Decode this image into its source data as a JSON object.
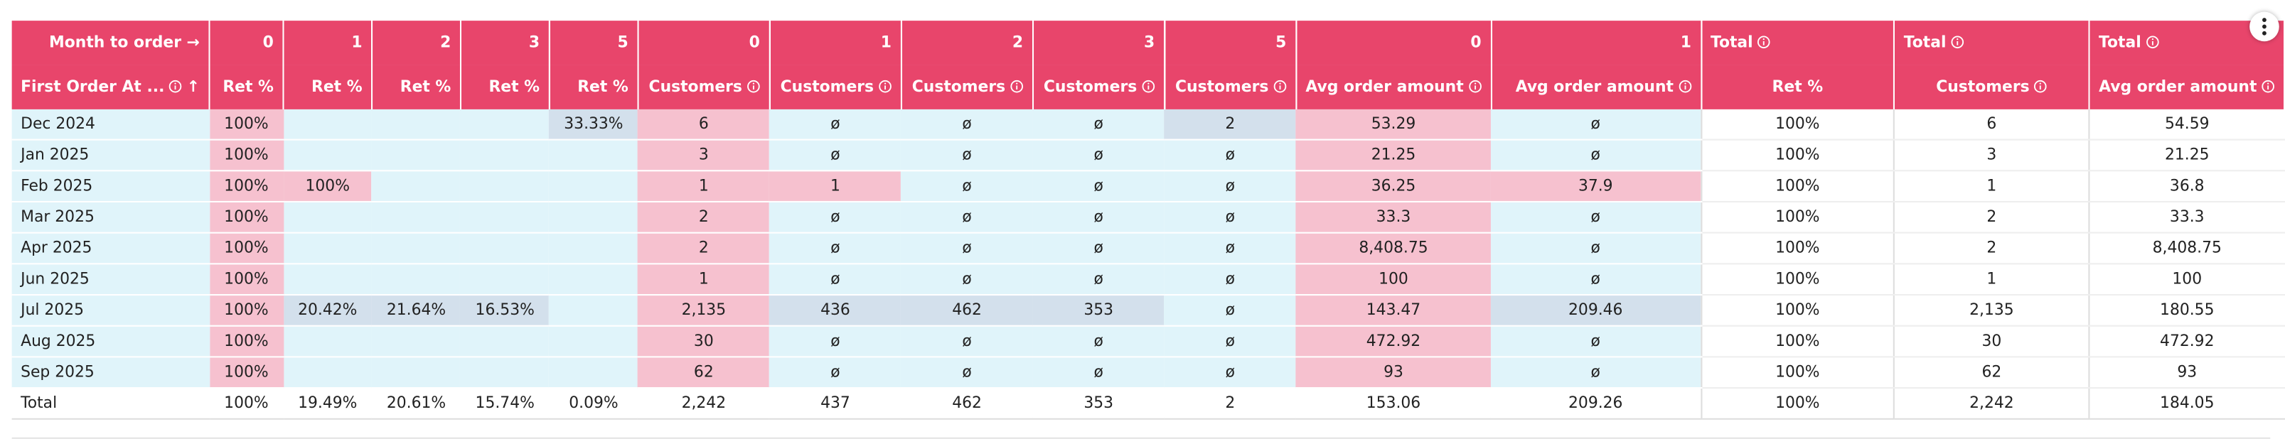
{
  "table": {
    "header_top": {
      "label": "Month to order →",
      "months": [
        0,
        1,
        2,
        3,
        5,
        0,
        1,
        2,
        3,
        5,
        0,
        1
      ],
      "totals": [
        "Total",
        "Total",
        "Total"
      ]
    },
    "header_bottom": {
      "label": "First Order At ...",
      "sort": "↑",
      "columns": [
        "Ret %",
        "Ret %",
        "Ret %",
        "Ret %",
        "Ret %",
        "Customers",
        "Customers",
        "Customers",
        "Customers",
        "Customers",
        "Avg order amount",
        "Avg order amount"
      ],
      "totals": [
        "Ret %",
        "Customers",
        "Avg order amount"
      ]
    },
    "rows": [
      {
        "label": "Dec 2024",
        "cells": [
          "100%",
          null,
          null,
          null,
          "33.33%",
          "6",
          "ø",
          "ø",
          "ø",
          "2",
          "53.29",
          "ø"
        ],
        "totals": [
          "100%",
          "6",
          "54.59"
        ]
      },
      {
        "label": "Jan 2025",
        "cells": [
          "100%",
          null,
          null,
          null,
          null,
          "3",
          "ø",
          "ø",
          "ø",
          "ø",
          "21.25",
          "ø"
        ],
        "totals": [
          "100%",
          "3",
          "21.25"
        ]
      },
      {
        "label": "Feb 2025",
        "cells": [
          "100%",
          "100%",
          null,
          null,
          null,
          "1",
          "1",
          "ø",
          "ø",
          "ø",
          "36.25",
          "37.9"
        ],
        "totals": [
          "100%",
          "1",
          "36.8"
        ]
      },
      {
        "label": "Mar 2025",
        "cells": [
          "100%",
          null,
          null,
          null,
          null,
          "2",
          "ø",
          "ø",
          "ø",
          "ø",
          "33.3",
          "ø"
        ],
        "totals": [
          "100%",
          "2",
          "33.3"
        ]
      },
      {
        "label": "Apr 2025",
        "cells": [
          "100%",
          null,
          null,
          null,
          null,
          "2",
          "ø",
          "ø",
          "ø",
          "ø",
          "8,408.75",
          "ø"
        ],
        "totals": [
          "100%",
          "2",
          "8,408.75"
        ]
      },
      {
        "label": "Jun 2025",
        "cells": [
          "100%",
          null,
          null,
          null,
          null,
          "1",
          "ø",
          "ø",
          "ø",
          "ø",
          "100",
          "ø"
        ],
        "totals": [
          "100%",
          "1",
          "100"
        ]
      },
      {
        "label": "Jul 2025",
        "cells": [
          "100%",
          "20.42%",
          "21.64%",
          "16.53%",
          null,
          "2,135",
          "436",
          "462",
          "353",
          "ø",
          "143.47",
          "209.46"
        ],
        "totals": [
          "100%",
          "2,135",
          "180.55"
        ]
      },
      {
        "label": "Aug 2025",
        "cells": [
          "100%",
          null,
          null,
          null,
          null,
          "30",
          "ø",
          "ø",
          "ø",
          "ø",
          "472.92",
          "ø"
        ],
        "totals": [
          "100%",
          "30",
          "472.92"
        ]
      },
      {
        "label": "Sep 2025",
        "cells": [
          "100%",
          null,
          null,
          null,
          null,
          "62",
          "ø",
          "ø",
          "ø",
          "ø",
          "93",
          "ø"
        ],
        "totals": [
          "100%",
          "62",
          "93"
        ]
      }
    ],
    "total_row": {
      "label": "Total",
      "cells": [
        "100%",
        "19.49%",
        "20.61%",
        "15.74%",
        "0.09%",
        "2,242",
        "437",
        "462",
        "353",
        "2",
        "153.06",
        "209.26"
      ],
      "totals": [
        "100%",
        "2,242",
        "184.05"
      ]
    }
  }
}
